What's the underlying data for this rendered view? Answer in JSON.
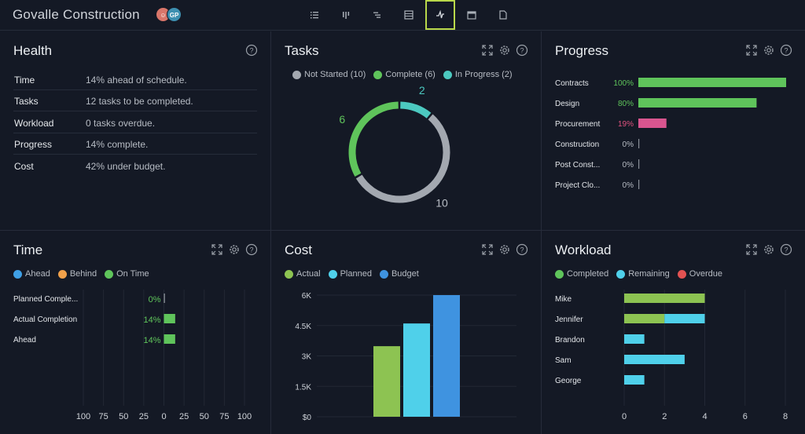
{
  "header": {
    "title": "Govalle Construction",
    "avatar_initials": "GP"
  },
  "views": [
    {
      "icon": "list-icon"
    },
    {
      "icon": "board-icon"
    },
    {
      "icon": "gantt-icon"
    },
    {
      "icon": "sheet-icon"
    },
    {
      "icon": "dashboard-icon",
      "active": true
    },
    {
      "icon": "calendar-icon"
    },
    {
      "icon": "document-icon"
    }
  ],
  "health": {
    "title": "Health",
    "rows": [
      {
        "label": "Time",
        "value": "14% ahead of schedule."
      },
      {
        "label": "Tasks",
        "value": "12 tasks to be completed."
      },
      {
        "label": "Workload",
        "value": "0 tasks overdue."
      },
      {
        "label": "Progress",
        "value": "14% complete."
      },
      {
        "label": "Cost",
        "value": "42% under budget."
      }
    ]
  },
  "tasks": {
    "title": "Tasks",
    "legend": [
      {
        "label": "Not Started (10)",
        "color": "#a3a8b0"
      },
      {
        "label": "Complete (6)",
        "color": "#5fc45b"
      },
      {
        "label": "In Progress (2)",
        "color": "#4cc9c0"
      }
    ],
    "chart_data": {
      "type": "pie",
      "segments": [
        {
          "label": "In Progress",
          "value": 2,
          "color": "#4cc9c0",
          "display": "2"
        },
        {
          "label": "Not Started",
          "value": 10,
          "color": "#a3a8b0",
          "display": "10"
        },
        {
          "label": "Complete",
          "value": 6,
          "color": "#5fc45b",
          "display": "6"
        }
      ]
    }
  },
  "progress": {
    "title": "Progress",
    "chart_data": {
      "type": "bar",
      "orientation": "horizontal",
      "items": [
        {
          "label": "Contracts",
          "pct": 100,
          "display": "100%",
          "color": "#5fc45b",
          "labelcolor": "#5fc45b"
        },
        {
          "label": "Design",
          "pct": 80,
          "display": "80%",
          "color": "#5fc45b",
          "labelcolor": "#5fc45b"
        },
        {
          "label": "Procurement",
          "pct": 19,
          "display": "19%",
          "color": "#d9558f",
          "labelcolor": "#e0527f"
        },
        {
          "label": "Construction",
          "pct": 0,
          "display": "0%",
          "color": "#888",
          "labelcolor": "#b7bcc4"
        },
        {
          "label": "Post Const...",
          "pct": 0,
          "display": "0%",
          "color": "#888",
          "labelcolor": "#b7bcc4"
        },
        {
          "label": "Project Clo...",
          "pct": 0,
          "display": "0%",
          "color": "#888",
          "labelcolor": "#b7bcc4"
        }
      ]
    }
  },
  "time": {
    "title": "Time",
    "legend": [
      {
        "label": "Ahead",
        "color": "#3fa0e6"
      },
      {
        "label": "Behind",
        "color": "#f0a04a"
      },
      {
        "label": "On Time",
        "color": "#5fc45b"
      }
    ],
    "chart_data": {
      "type": "bar",
      "orientation": "horizontal",
      "xlim": [
        -100,
        100
      ],
      "ticks": [
        "100",
        "75",
        "50",
        "25",
        "0",
        "25",
        "50",
        "75",
        "100"
      ],
      "items": [
        {
          "label": "Planned Comple...",
          "value": 0,
          "display": "0%"
        },
        {
          "label": "Actual Completion",
          "value": 14,
          "display": "14%"
        },
        {
          "label": "Ahead",
          "value": 14,
          "display": "14%"
        }
      ]
    }
  },
  "cost": {
    "title": "Cost",
    "legend": [
      {
        "label": "Actual",
        "color": "#8dc352"
      },
      {
        "label": "Planned",
        "color": "#4fd0ea"
      },
      {
        "label": "Budget",
        "color": "#3f93e0"
      }
    ],
    "chart_data": {
      "type": "bar",
      "ylim": [
        0,
        6000
      ],
      "yticks": [
        "$0",
        "1.5K",
        "3K",
        "4.5K",
        "6K"
      ],
      "series": [
        {
          "name": "Actual",
          "value": 3480,
          "color": "#8dc352"
        },
        {
          "name": "Planned",
          "value": 4600,
          "color": "#4fd0ea"
        },
        {
          "name": "Budget",
          "value": 6000,
          "color": "#3f93e0"
        }
      ]
    }
  },
  "workload": {
    "title": "Workload",
    "legend": [
      {
        "label": "Completed",
        "color": "#5fc45b"
      },
      {
        "label": "Remaining",
        "color": "#4fd0ea"
      },
      {
        "label": "Overdue",
        "color": "#e25252"
      }
    ],
    "chart_data": {
      "type": "bar",
      "orientation": "horizontal",
      "stacked": true,
      "xlim": [
        0,
        8
      ],
      "xticks": [
        "0",
        "2",
        "4",
        "6",
        "8"
      ],
      "rows": [
        {
          "name": "Mike",
          "completed": 4,
          "remaining": 0
        },
        {
          "name": "Jennifer",
          "completed": 2,
          "remaining": 2
        },
        {
          "name": "Brandon",
          "completed": 0,
          "remaining": 1
        },
        {
          "name": "Sam",
          "completed": 0,
          "remaining": 3
        },
        {
          "name": "George",
          "completed": 0,
          "remaining": 1
        }
      ]
    }
  }
}
